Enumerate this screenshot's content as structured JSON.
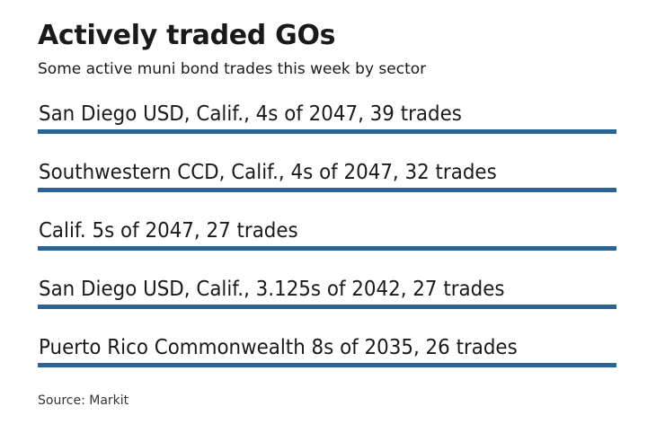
{
  "header": {
    "title": "Actively traded GOs",
    "subtitle": "Some active muni bond trades this week by sector"
  },
  "chart_data": {
    "type": "table",
    "title": "Actively traded GOs",
    "subtitle": "Some active muni bond trades this week by sector",
    "bar_color": "#2a6496",
    "rows": [
      {
        "label": "San Diego USD, Calif., 4s of 2047, 39 trades",
        "issuer": "San Diego USD, Calif.",
        "coupon": "4s",
        "maturity": 2047,
        "trades": 39
      },
      {
        "label": "Southwestern CCD, Calif., 4s of 2047, 32 trades",
        "issuer": "Southwestern CCD, Calif.",
        "coupon": "4s",
        "maturity": 2047,
        "trades": 32
      },
      {
        "label": "Calif. 5s of 2047, 27 trades",
        "issuer": "Calif.",
        "coupon": "5s",
        "maturity": 2047,
        "trades": 27
      },
      {
        "label": "San Diego USD, Calif., 3.125s of 2042, 27 trades",
        "issuer": "San Diego USD, Calif.",
        "coupon": "3.125s",
        "maturity": 2042,
        "trades": 27
      },
      {
        "label": "Puerto Rico Commonwealth 8s of 2035, 26 trades",
        "issuer": "Puerto Rico Commonwealth",
        "coupon": "8s",
        "maturity": 2035,
        "trades": 26
      }
    ],
    "source": "Source: Markit"
  },
  "footer": {
    "source": "Source: Markit"
  }
}
